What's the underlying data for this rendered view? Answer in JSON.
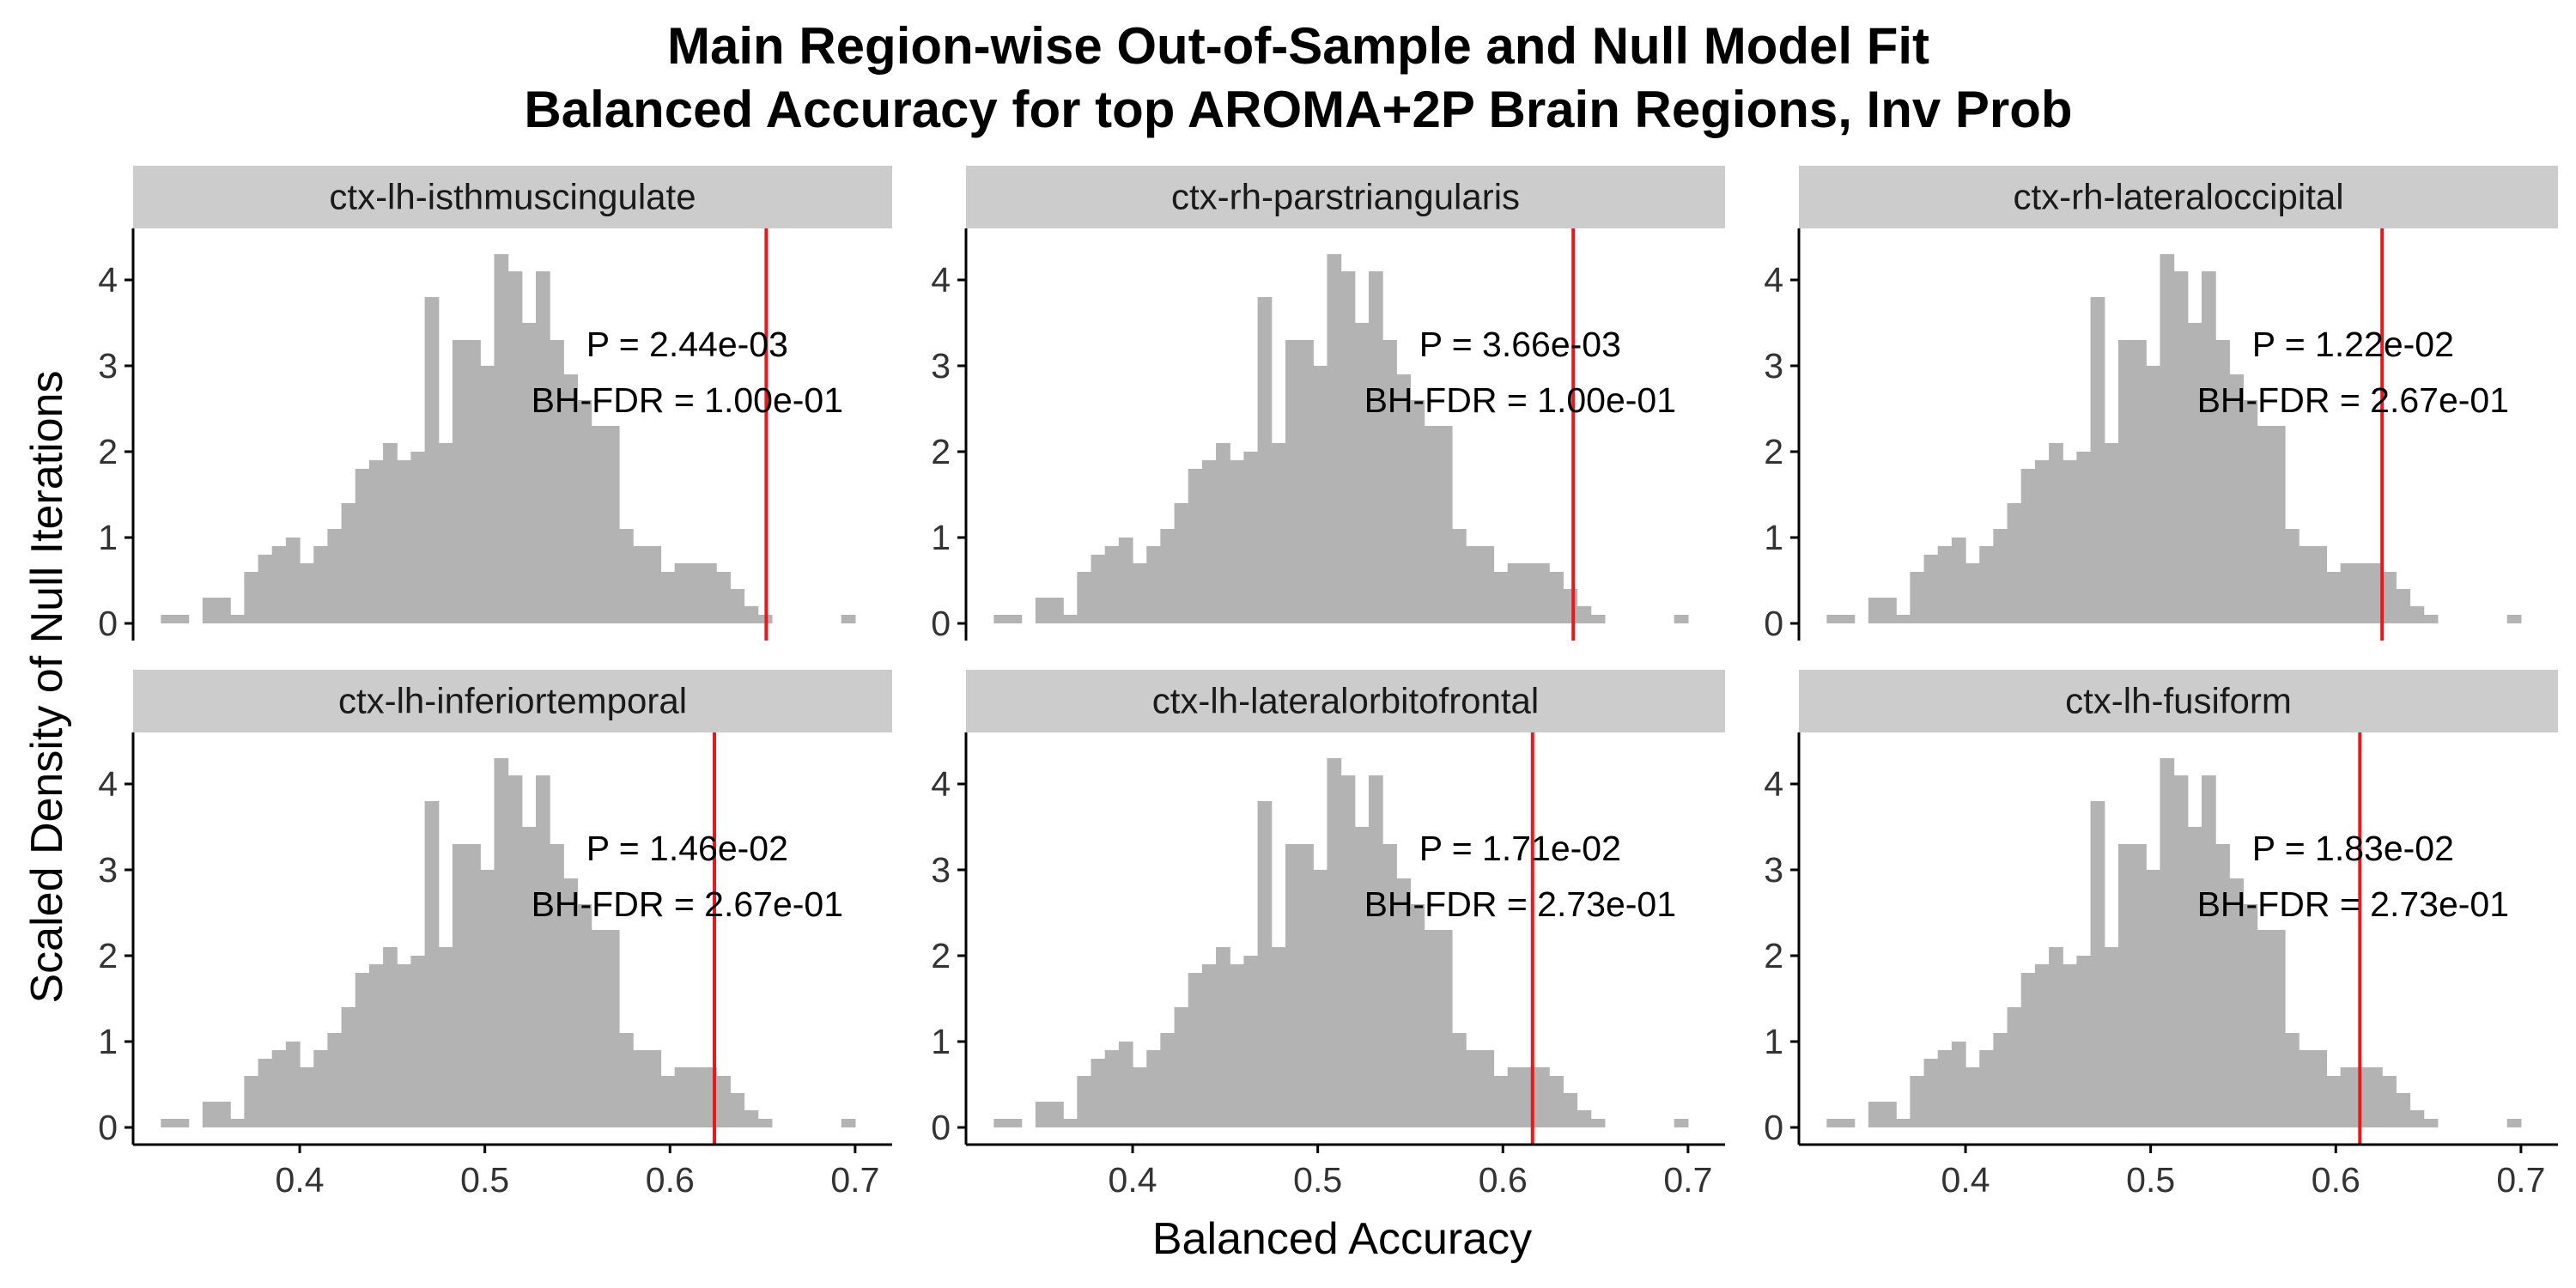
{
  "chart_data": {
    "type": "bar",
    "title": "Main Region-wise Out-of-Sample and Null Model Fit",
    "subtitle": "Balanced Accuracy for top AROMA+2P Brain Regions, Inv Prob",
    "xlabel": "Balanced Accuracy",
    "ylabel": "Scaled Density of Null Iterations",
    "xlim": [
      0.31,
      0.72
    ],
    "ylim": [
      -0.2,
      4.6
    ],
    "x_ticks": [
      "0.4",
      "0.5",
      "0.6",
      "0.7"
    ],
    "y_ticks": [
      "0",
      "1",
      "2",
      "3",
      "4"
    ],
    "grid": false,
    "bin_start": 0.325,
    "bin_width": 0.0075,
    "null_density": [
      0.1,
      0.1,
      0.0,
      0.3,
      0.3,
      0.1,
      0.6,
      0.8,
      0.9,
      1.0,
      0.7,
      0.9,
      1.1,
      1.4,
      1.8,
      1.9,
      2.1,
      1.9,
      2.0,
      3.8,
      2.1,
      3.3,
      3.3,
      3.0,
      4.3,
      4.1,
      3.5,
      4.1,
      3.3,
      2.9,
      2.6,
      2.3,
      2.3,
      1.1,
      0.9,
      0.9,
      0.6,
      0.7,
      0.7,
      0.7,
      0.6,
      0.4,
      0.2,
      0.1,
      0.0,
      0.0,
      0.0,
      0.0,
      0.0,
      0.1
    ],
    "panels": [
      {
        "name": "ctx-lh-isthmuscingulate",
        "observed": 0.652,
        "p_label": "P = 2.44e-03",
        "fdr_label": "BH-FDR = 1.00e-01"
      },
      {
        "name": "ctx-rh-parstriangularis",
        "observed": 0.638,
        "p_label": "P = 3.66e-03",
        "fdr_label": "BH-FDR = 1.00e-01"
      },
      {
        "name": "ctx-rh-lateraloccipital",
        "observed": 0.625,
        "p_label": "P = 1.22e-02",
        "fdr_label": "BH-FDR = 2.67e-01"
      },
      {
        "name": "ctx-lh-inferiortemporal",
        "observed": 0.624,
        "p_label": "P = 1.46e-02",
        "fdr_label": "BH-FDR = 2.67e-01"
      },
      {
        "name": "ctx-lh-lateralorbitofrontal",
        "observed": 0.616,
        "p_label": "P = 1.71e-02",
        "fdr_label": "BH-FDR = 2.73e-01"
      },
      {
        "name": "ctx-lh-fusiform",
        "observed": 0.613,
        "p_label": "P = 1.83e-02",
        "fdr_label": "BH-FDR = 2.73e-01"
      }
    ],
    "colors": {
      "bars": "#b3b3b3",
      "observed_line": "#e8191c",
      "strip_bg": "#cccccc",
      "axis": "#000000"
    }
  }
}
